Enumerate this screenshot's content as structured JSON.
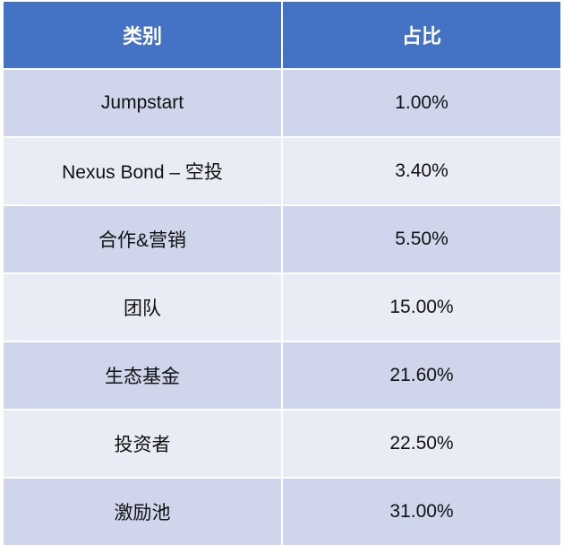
{
  "table": {
    "header": [
      "类别",
      "占比"
    ],
    "rows": [
      [
        "Jumpstart",
        "1.00%"
      ],
      [
        "Nexus Bond – 空投",
        "3.40%"
      ],
      [
        "合作&营销",
        "5.50%"
      ],
      [
        "团队",
        "15.00%"
      ],
      [
        "生态基金",
        "21.60%"
      ],
      [
        "投资者",
        "22.50%"
      ],
      [
        "激励池",
        "31.00%"
      ]
    ]
  }
}
